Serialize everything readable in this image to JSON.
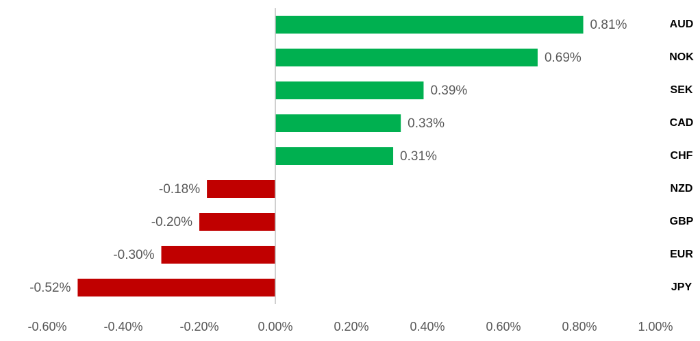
{
  "chart_data": {
    "type": "bar",
    "orientation": "horizontal",
    "categories": [
      "AUD",
      "NOK",
      "SEK",
      "CAD",
      "CHF",
      "NZD",
      "GBP",
      "EUR",
      "JPY"
    ],
    "values": [
      0.81,
      0.69,
      0.39,
      0.33,
      0.31,
      -0.18,
      -0.2,
      -0.3,
      -0.52
    ],
    "value_labels": [
      "0.81%",
      "0.69%",
      "0.39%",
      "0.33%",
      "0.31%",
      "-0.18%",
      "-0.20%",
      "-0.30%",
      "-0.52%"
    ],
    "colors": [
      "#00b050",
      "#00b050",
      "#00b050",
      "#00b050",
      "#00b050",
      "#c00000",
      "#c00000",
      "#c00000",
      "#c00000"
    ],
    "xlim": [
      -0.6,
      1.0
    ],
    "xticks": [
      {
        "value": -0.6,
        "label": "-0.60%"
      },
      {
        "value": -0.4,
        "label": "-0.40%"
      },
      {
        "value": -0.2,
        "label": "-0.20%"
      },
      {
        "value": 0,
        "label": "0.00%"
      },
      {
        "value": 0.2,
        "label": "0.20%"
      },
      {
        "value": 0.4,
        "label": "0.40%"
      },
      {
        "value": 0.6,
        "label": "0.60%"
      },
      {
        "value": 0.8,
        "label": "0.80%"
      },
      {
        "value": 1.0,
        "label": "1.00%"
      }
    ],
    "grid": false
  }
}
